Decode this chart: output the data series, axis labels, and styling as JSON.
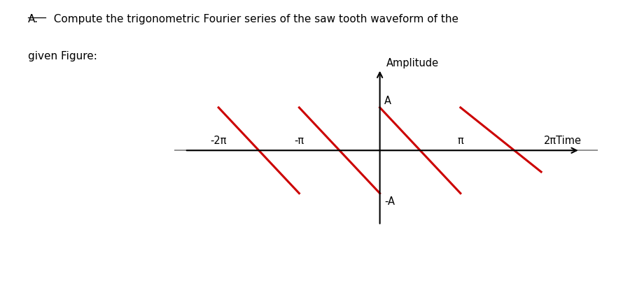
{
  "title_line1": "A.  Compute the trigonometric Fourier series of the saw tooth waveform of the",
  "title_line2": "given Figure:",
  "ylabel": "Amplitude",
  "tick_labels": [
    "-2π",
    "-π",
    "π",
    "2πTime"
  ],
  "amplitude_label": "A",
  "neg_amplitude_label": "-A",
  "waveform_color": "#cc0000",
  "axis_color": "#888888",
  "arrow_color": "#000000",
  "background": "#ffffff",
  "xlim": [
    -8.0,
    8.5
  ],
  "ylim": [
    -1.9,
    2.2
  ],
  "A": 1.0,
  "pi": 3.14159265358979
}
